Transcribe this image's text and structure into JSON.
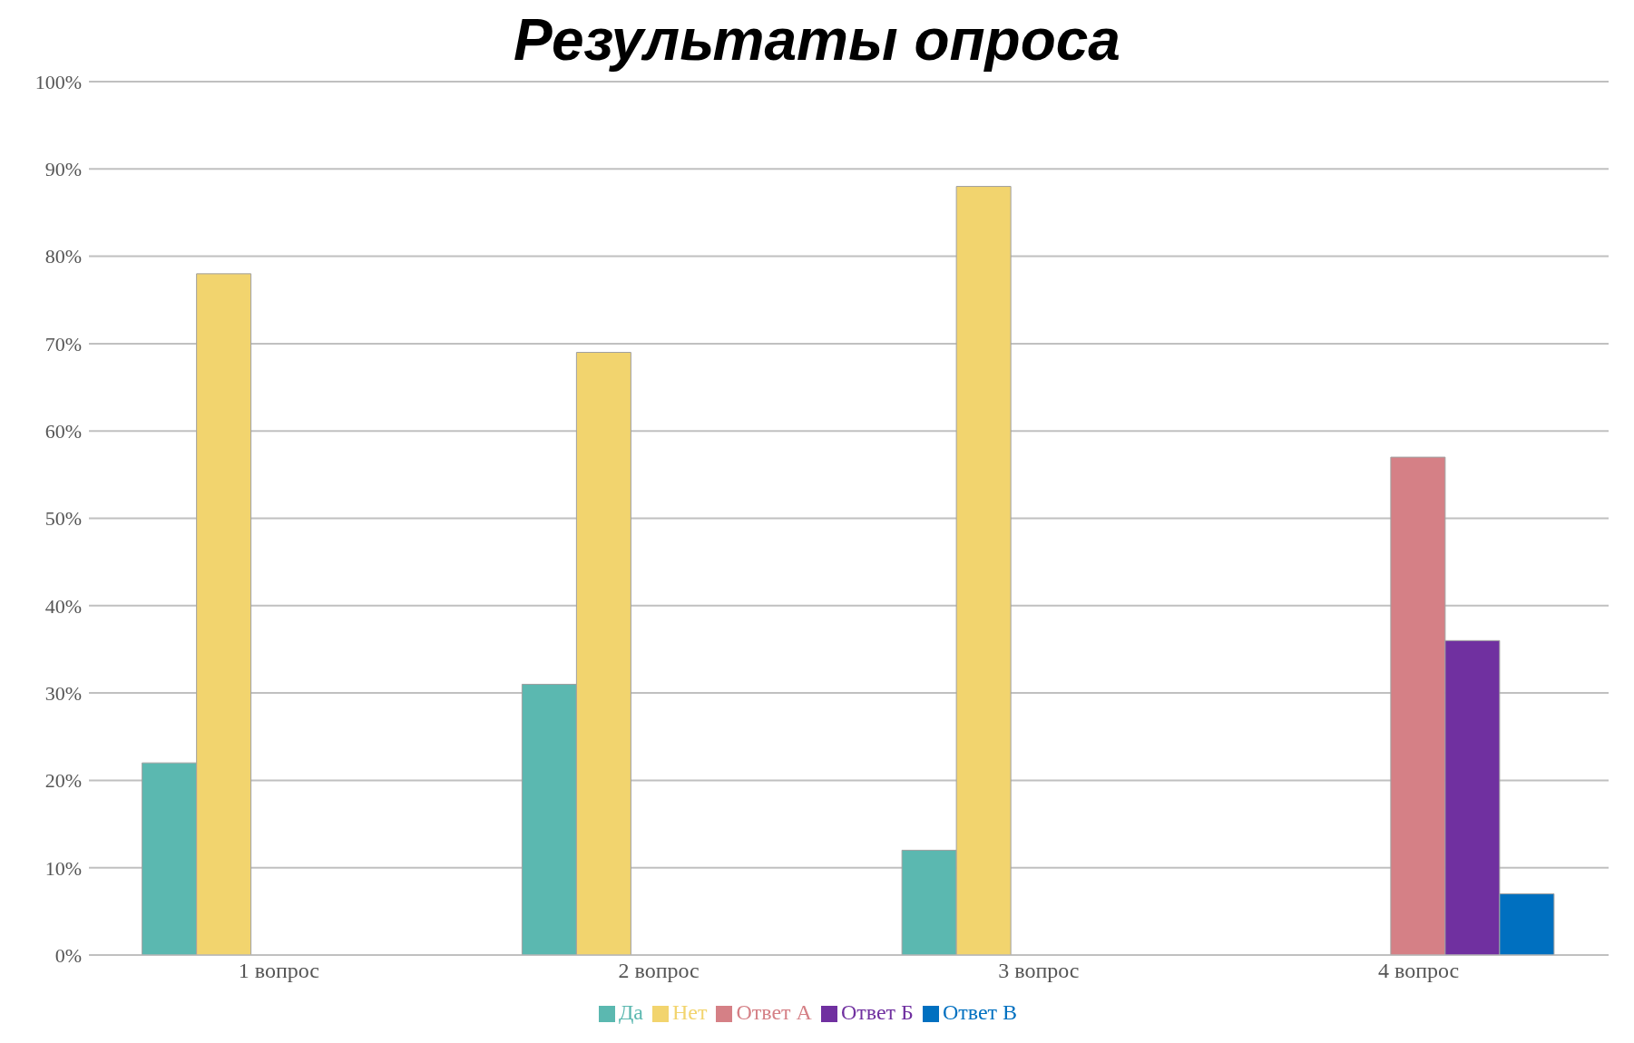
{
  "chart_data": {
    "type": "bar",
    "title": "Результаты опроса",
    "categories": [
      "1 вопрос",
      "2 вопрос",
      "3 вопрос",
      "4 вопрос"
    ],
    "series": [
      {
        "name": "Да",
        "color": "#5bb8b0",
        "values": [
          22,
          31,
          12,
          null
        ]
      },
      {
        "name": "Нет",
        "color": "#f2d46e",
        "values": [
          78,
          69,
          88,
          null
        ]
      },
      {
        "name": "Ответ А",
        "color": "#d58086",
        "values": [
          null,
          null,
          null,
          57
        ]
      },
      {
        "name": "Ответ Б",
        "color": "#7030a0",
        "values": [
          null,
          null,
          null,
          36
        ]
      },
      {
        "name": "Ответ В",
        "color": "#0070c0",
        "values": [
          null,
          null,
          null,
          7
        ]
      }
    ],
    "ylim": [
      0,
      100
    ],
    "yticks": [
      {
        "value": 0,
        "label": "0%"
      },
      {
        "value": 10,
        "label": "10%"
      },
      {
        "value": 20,
        "label": "20%"
      },
      {
        "value": 30,
        "label": "30%"
      },
      {
        "value": 40,
        "label": "40%"
      },
      {
        "value": 50,
        "label": "50%"
      },
      {
        "value": 60,
        "label": "60%"
      },
      {
        "value": 70,
        "label": "70%"
      },
      {
        "value": 80,
        "label": "80%"
      },
      {
        "value": 90,
        "label": "90%"
      },
      {
        "value": 100,
        "label": "100%"
      }
    ],
    "grid": "y",
    "legend": "bottom"
  }
}
